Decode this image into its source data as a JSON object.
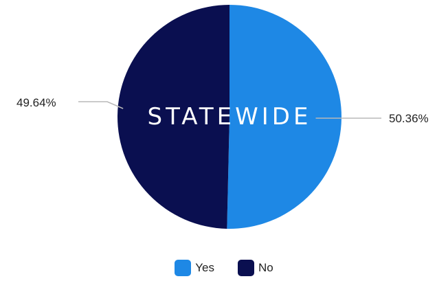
{
  "chart_data": {
    "type": "pie",
    "title": "STATEWIDE",
    "slices": [
      {
        "label": "Yes",
        "value": 50.36,
        "value_label": "50.36%",
        "color": "#1e88e5"
      },
      {
        "label": "No",
        "value": 49.64,
        "value_label": "49.64%",
        "color": "#0a0f50"
      }
    ],
    "legend_position": "bottom",
    "label_style": "outside-with-leader-lines"
  }
}
